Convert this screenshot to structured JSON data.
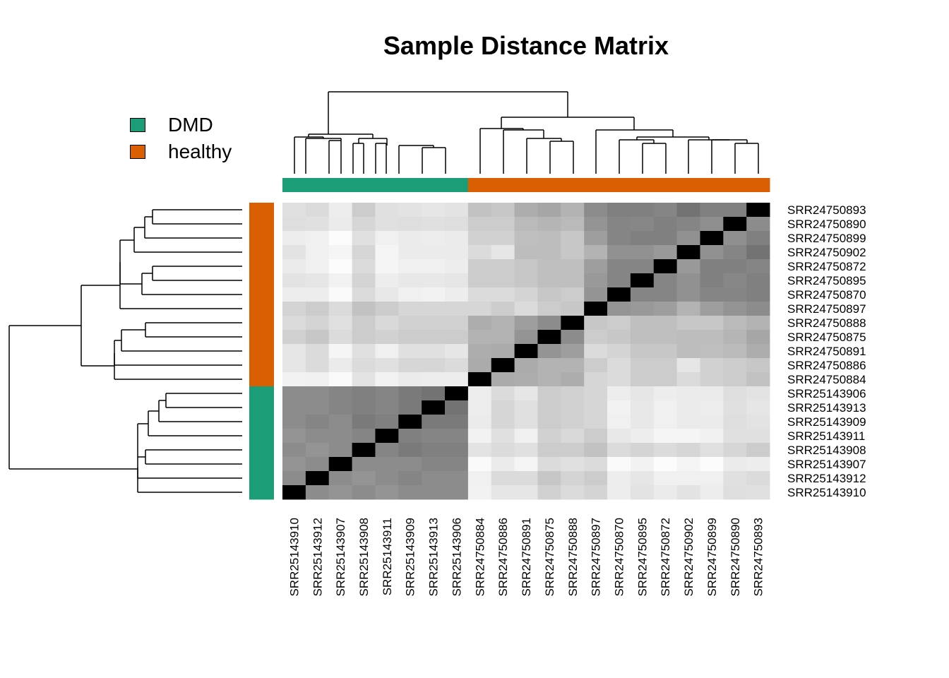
{
  "title": "Sample Distance Matrix",
  "legend": [
    {
      "label": "DMD",
      "color": "#1b9e77"
    },
    {
      "label": "healthy",
      "color": "#d95f02"
    }
  ],
  "chart_data": {
    "type": "heatmap",
    "title": "Sample Distance Matrix",
    "grid": false,
    "legend_position": "top-left",
    "color_scale": "grey, black = 0 distance, white = largest distance",
    "annotation": {
      "DMD": "#1b9e77",
      "healthy": "#d95f02"
    },
    "columns": [
      "SRR25143910",
      "SRR25143912",
      "SRR25143907",
      "SRR25143908",
      "SRR25143911",
      "SRR25143909",
      "SRR25143913",
      "SRR25143906",
      "SRR24750884",
      "SRR24750886",
      "SRR24750891",
      "SRR24750875",
      "SRR24750888",
      "SRR24750897",
      "SRR24750870",
      "SRR24750895",
      "SRR24750872",
      "SRR24750902",
      "SRR24750899",
      "SRR24750890",
      "SRR24750893"
    ],
    "column_groups": [
      "DMD",
      "DMD",
      "DMD",
      "DMD",
      "DMD",
      "DMD",
      "DMD",
      "DMD",
      "healthy",
      "healthy",
      "healthy",
      "healthy",
      "healthy",
      "healthy",
      "healthy",
      "healthy",
      "healthy",
      "healthy",
      "healthy",
      "healthy",
      "healthy"
    ],
    "rows": [
      "SRR24750893",
      "SRR24750890",
      "SRR24750899",
      "SRR24750902",
      "SRR24750872",
      "SRR24750895",
      "SRR24750870",
      "SRR24750897",
      "SRR24750888",
      "SRR24750875",
      "SRR24750891",
      "SRR24750886",
      "SRR24750884",
      "SRR25143906",
      "SRR25143913",
      "SRR25143909",
      "SRR25143911",
      "SRR25143908",
      "SRR25143907",
      "SRR25143912",
      "SRR25143910"
    ],
    "row_groups": [
      "healthy",
      "healthy",
      "healthy",
      "healthy",
      "healthy",
      "healthy",
      "healthy",
      "healthy",
      "healthy",
      "healthy",
      "healthy",
      "healthy",
      "healthy",
      "DMD",
      "DMD",
      "DMD",
      "DMD",
      "DMD",
      "DMD",
      "DMD",
      "DMD"
    ],
    "values": [
      [
        0.88,
        0.86,
        0.93,
        0.8,
        0.88,
        0.89,
        0.9,
        0.89,
        0.76,
        0.78,
        0.68,
        0.65,
        0.7,
        0.55,
        0.5,
        0.5,
        0.52,
        0.45,
        0.5,
        0.5,
        0.0
      ],
      [
        0.87,
        0.88,
        0.92,
        0.84,
        0.88,
        0.87,
        0.88,
        0.87,
        0.8,
        0.8,
        0.73,
        0.71,
        0.73,
        0.58,
        0.52,
        0.53,
        0.5,
        0.52,
        0.56,
        0.0,
        0.55
      ],
      [
        0.93,
        0.94,
        0.99,
        0.88,
        0.94,
        0.92,
        0.93,
        0.92,
        0.82,
        0.82,
        0.75,
        0.74,
        0.78,
        0.62,
        0.52,
        0.5,
        0.5,
        0.57,
        0.0,
        0.56,
        0.5
      ],
      [
        0.89,
        0.94,
        0.96,
        0.84,
        0.96,
        0.92,
        0.92,
        0.92,
        0.86,
        0.9,
        0.74,
        0.74,
        0.78,
        0.7,
        0.57,
        0.57,
        0.6,
        0.0,
        0.57,
        0.52,
        0.45
      ],
      [
        0.92,
        0.94,
        0.99,
        0.86,
        0.96,
        0.94,
        0.94,
        0.93,
        0.8,
        0.8,
        0.78,
        0.75,
        0.75,
        0.62,
        0.52,
        0.52,
        0.0,
        0.6,
        0.5,
        0.5,
        0.52
      ],
      [
        0.89,
        0.9,
        0.95,
        0.83,
        0.93,
        0.91,
        0.91,
        0.9,
        0.8,
        0.8,
        0.78,
        0.75,
        0.75,
        0.6,
        0.52,
        0.0,
        0.52,
        0.57,
        0.5,
        0.53,
        0.5
      ],
      [
        0.93,
        0.93,
        0.98,
        0.86,
        0.91,
        0.94,
        0.95,
        0.93,
        0.86,
        0.86,
        0.83,
        0.78,
        0.8,
        0.58,
        0.0,
        0.52,
        0.52,
        0.57,
        0.52,
        0.52,
        0.5
      ],
      [
        0.83,
        0.8,
        0.86,
        0.76,
        0.8,
        0.84,
        0.84,
        0.84,
        0.84,
        0.8,
        0.86,
        0.8,
        0.78,
        0.0,
        0.58,
        0.6,
        0.62,
        0.7,
        0.62,
        0.58,
        0.55
      ],
      [
        0.86,
        0.83,
        0.88,
        0.8,
        0.85,
        0.82,
        0.82,
        0.82,
        0.68,
        0.7,
        0.62,
        0.55,
        0.0,
        0.78,
        0.8,
        0.75,
        0.75,
        0.78,
        0.78,
        0.73,
        0.7
      ],
      [
        0.82,
        0.78,
        0.86,
        0.8,
        0.82,
        0.8,
        0.8,
        0.8,
        0.7,
        0.7,
        0.58,
        0.0,
        0.55,
        0.8,
        0.78,
        0.75,
        0.75,
        0.74,
        0.74,
        0.71,
        0.65
      ],
      [
        0.9,
        0.86,
        0.96,
        0.88,
        0.94,
        0.88,
        0.88,
        0.9,
        0.68,
        0.67,
        0.0,
        0.58,
        0.62,
        0.86,
        0.83,
        0.78,
        0.78,
        0.74,
        0.75,
        0.73,
        0.68
      ],
      [
        0.9,
        0.86,
        0.92,
        0.86,
        0.88,
        0.84,
        0.84,
        0.86,
        0.67,
        0.0,
        0.67,
        0.7,
        0.7,
        0.8,
        0.86,
        0.8,
        0.8,
        0.9,
        0.82,
        0.8,
        0.78
      ],
      [
        0.95,
        0.94,
        0.98,
        0.89,
        0.95,
        0.92,
        0.93,
        0.93,
        0.0,
        0.67,
        0.68,
        0.7,
        0.68,
        0.84,
        0.86,
        0.8,
        0.8,
        0.86,
        0.82,
        0.8,
        0.76
      ],
      [
        0.55,
        0.55,
        0.52,
        0.5,
        0.52,
        0.48,
        0.45,
        0.0,
        0.93,
        0.86,
        0.9,
        0.8,
        0.82,
        0.84,
        0.93,
        0.9,
        0.93,
        0.92,
        0.92,
        0.87,
        0.89
      ],
      [
        0.55,
        0.55,
        0.52,
        0.5,
        0.52,
        0.48,
        0.0,
        0.45,
        0.93,
        0.84,
        0.88,
        0.8,
        0.82,
        0.84,
        0.95,
        0.91,
        0.94,
        0.92,
        0.93,
        0.88,
        0.9
      ],
      [
        0.55,
        0.52,
        0.55,
        0.48,
        0.5,
        0.0,
        0.48,
        0.48,
        0.92,
        0.84,
        0.88,
        0.8,
        0.82,
        0.84,
        0.94,
        0.91,
        0.94,
        0.92,
        0.92,
        0.87,
        0.89
      ],
      [
        0.58,
        0.55,
        0.55,
        0.52,
        0.0,
        0.5,
        0.52,
        0.52,
        0.95,
        0.88,
        0.94,
        0.82,
        0.85,
        0.8,
        0.91,
        0.93,
        0.96,
        0.96,
        0.94,
        0.88,
        0.88
      ],
      [
        0.55,
        0.58,
        0.55,
        0.0,
        0.52,
        0.48,
        0.5,
        0.5,
        0.89,
        0.86,
        0.88,
        0.8,
        0.8,
        0.76,
        0.86,
        0.83,
        0.86,
        0.84,
        0.88,
        0.84,
        0.8
      ],
      [
        0.58,
        0.55,
        0.0,
        0.55,
        0.55,
        0.55,
        0.52,
        0.52,
        0.98,
        0.92,
        0.96,
        0.86,
        0.88,
        0.86,
        0.98,
        0.95,
        0.99,
        0.96,
        0.99,
        0.92,
        0.93
      ],
      [
        0.55,
        0.0,
        0.55,
        0.58,
        0.55,
        0.52,
        0.55,
        0.55,
        0.94,
        0.86,
        0.86,
        0.78,
        0.83,
        0.8,
        0.93,
        0.9,
        0.94,
        0.94,
        0.94,
        0.88,
        0.86
      ],
      [
        0.0,
        0.55,
        0.58,
        0.55,
        0.58,
        0.55,
        0.55,
        0.55,
        0.95,
        0.9,
        0.9,
        0.82,
        0.86,
        0.83,
        0.93,
        0.89,
        0.92,
        0.89,
        0.93,
        0.87,
        0.88
      ]
    ]
  }
}
